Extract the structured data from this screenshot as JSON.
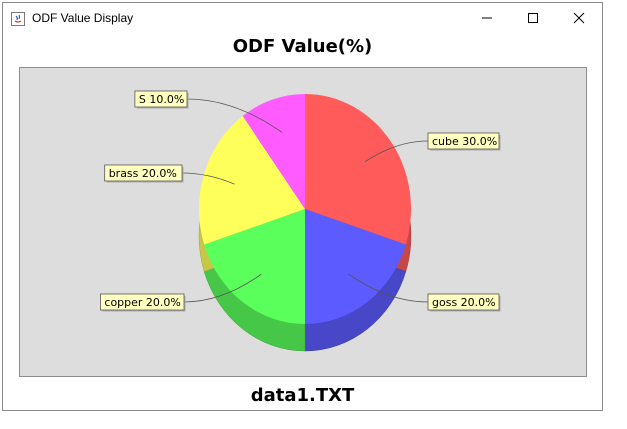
{
  "window": {
    "title": "ODF Value Display"
  },
  "chart_data": {
    "type": "pie",
    "title": "ODF Value(%)",
    "subtitle": "data1.TXT",
    "slices": [
      {
        "label": "cube",
        "value": 30.0,
        "color": "#ff5b5b",
        "label_text": "cube 30.0%"
      },
      {
        "label": "goss",
        "value": 20.0,
        "color": "#5b5bff",
        "label_text": "goss 20.0%"
      },
      {
        "label": "copper",
        "value": 20.0,
        "color": "#5bff5b",
        "label_text": "copper 20.0%"
      },
      {
        "label": "brass",
        "value": 20.0,
        "color": "#ffff5b",
        "label_text": "brass 20.0%"
      },
      {
        "label": "S",
        "value": 10.0,
        "color": "#ff5bff",
        "label_text": "S 10.0%"
      }
    ],
    "style": "3d"
  }
}
